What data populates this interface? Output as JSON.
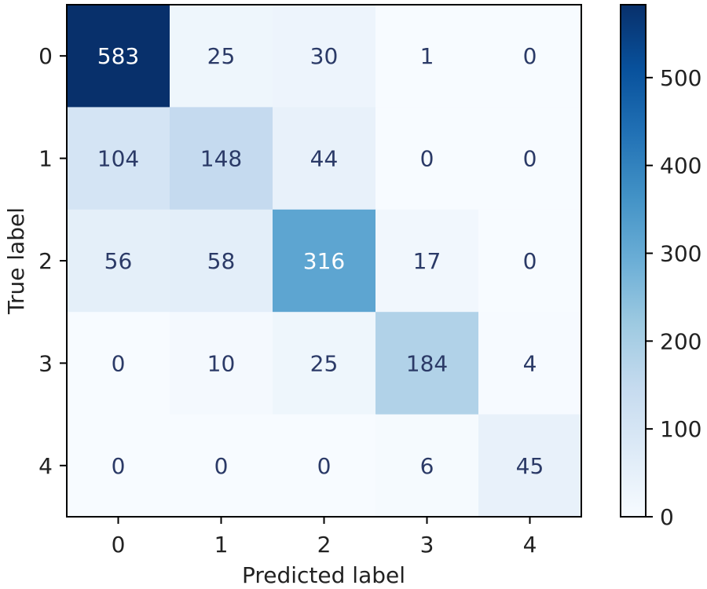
{
  "chart_data": {
    "type": "heatmap",
    "title": "",
    "xlabel": "Predicted label",
    "ylabel": "True label",
    "x_categories": [
      "0",
      "1",
      "2",
      "3",
      "4"
    ],
    "y_categories": [
      "0",
      "1",
      "2",
      "3",
      "4"
    ],
    "values": [
      [
        583,
        25,
        30,
        1,
        0
      ],
      [
        104,
        148,
        44,
        0,
        0
      ],
      [
        56,
        58,
        316,
        17,
        0
      ],
      [
        0,
        10,
        25,
        184,
        4
      ],
      [
        0,
        0,
        0,
        6,
        45
      ]
    ],
    "colormap": "Blues",
    "colorbar": {
      "min": 0,
      "max": 583,
      "ticks": [
        0,
        100,
        200,
        300,
        400,
        500
      ]
    }
  }
}
